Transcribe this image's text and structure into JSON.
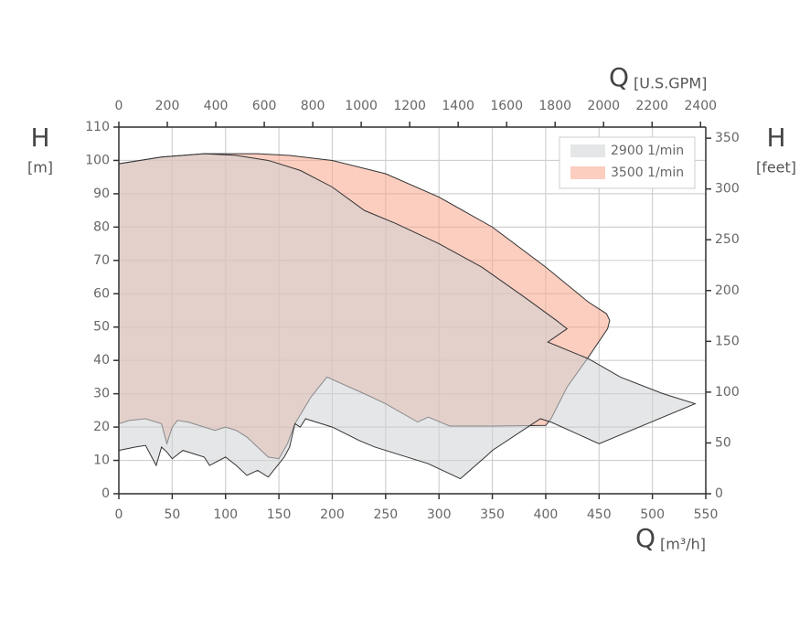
{
  "chart_data": {
    "type": "area",
    "left_axis_label": "H",
    "left_axis_unit": "[m]",
    "right_axis_label": "H",
    "right_axis_unit": "[feet]",
    "top_axis_label": "Q",
    "top_axis_unit": "[U.S.GPM]",
    "bottom_axis_label": "Q",
    "bottom_axis_unit": "[m³/h]",
    "xlim": [
      0,
      550
    ],
    "xticks": [
      0,
      50,
      100,
      150,
      200,
      250,
      300,
      350,
      400,
      450,
      500,
      550
    ],
    "ylim": [
      0,
      110
    ],
    "yticks": [
      0,
      10,
      20,
      30,
      40,
      50,
      60,
      70,
      80,
      90,
      100,
      110
    ],
    "x2lim": [
      0,
      2421.6
    ],
    "x2ticks": [
      0,
      200,
      400,
      600,
      800,
      1000,
      1200,
      1400,
      1600,
      1800,
      2000,
      2200,
      2400
    ],
    "y2lim": [
      0,
      360.9
    ],
    "y2ticks": [
      0,
      50,
      100,
      150,
      200,
      250,
      300,
      350
    ],
    "grid": true,
    "legend": "upper right",
    "series": [
      {
        "name": "3500 1/min",
        "color": "#f7a58c",
        "x": [
          0,
          40,
          80,
          130,
          160,
          200,
          250,
          300,
          350,
          400,
          440,
          457,
          460,
          458,
          440,
          420,
          405,
          400,
          350,
          310,
          290,
          280,
          250,
          230,
          195,
          180,
          165,
          158,
          150,
          140,
          130,
          120,
          110,
          100,
          90,
          80,
          65,
          55,
          50,
          45,
          40,
          25,
          10,
          0
        ],
        "values": [
          99,
          101,
          102,
          102,
          101.5,
          100,
          96,
          89,
          80,
          68,
          57.5,
          54,
          52,
          49.5,
          41,
          32,
          22.5,
          20.5,
          20.3,
          20.3,
          23,
          21.5,
          27,
          30,
          35,
          29,
          21,
          15,
          10.5,
          11,
          14,
          17,
          19,
          20,
          19,
          20,
          21.5,
          22,
          20,
          15,
          21,
          22.5,
          22,
          21
        ]
      },
      {
        "name": "2900 1/min",
        "color": "#cfd1d3",
        "x": [
          0,
          40,
          80,
          110,
          140,
          170,
          200,
          230,
          260,
          300,
          340,
          380,
          410,
          420,
          402,
          440,
          470,
          510,
          540,
          450,
          405,
          395,
          350,
          345,
          320,
          290,
          240,
          225,
          200,
          175,
          170,
          165,
          160,
          155,
          140,
          130,
          120,
          110,
          100,
          85,
          80,
          60,
          50,
          45,
          40,
          35,
          25,
          15,
          0
        ],
        "values": [
          99,
          101,
          102,
          101.5,
          100,
          97,
          92,
          85,
          81,
          75,
          68,
          59,
          52,
          49.5,
          45.5,
          40.5,
          35,
          30,
          27,
          15,
          21.5,
          22.5,
          13,
          11.5,
          4.5,
          9,
          14,
          16,
          20,
          22.5,
          20,
          21,
          14,
          11,
          5,
          7,
          5.5,
          8.5,
          11,
          8.5,
          11,
          13,
          10.5,
          12.5,
          14,
          8.5,
          14.5,
          14,
          13
        ]
      }
    ]
  }
}
